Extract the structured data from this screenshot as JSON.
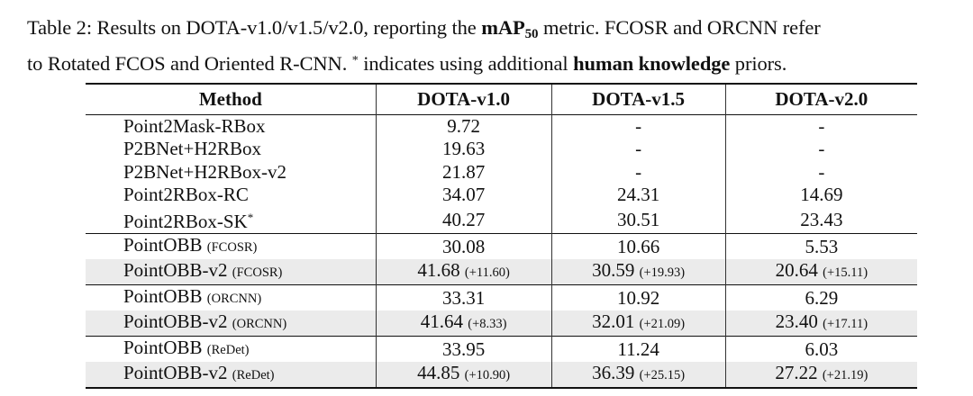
{
  "caption": {
    "label": "Table 2:",
    "text_before_bold": "Results on DOTA-v1.0/v1.5/v2.0, reporting the",
    "metric_bold": "mAP",
    "metric_sub": "50",
    "text_after_metric": "metric. FCOSR and ORCNN refer",
    "line2_before": "to Rotated FCOS and Oriented R-CNN.",
    "star": "*",
    "line2_mid": "indicates using additional",
    "line2_bold": "human knowledge",
    "line2_end": "priors."
  },
  "table": {
    "headers": [
      "Method",
      "DOTA-v1.0",
      "DOTA-v1.5",
      "DOTA-v2.0"
    ],
    "rows": [
      {
        "method": "Point2Mask-RBox",
        "detector": "",
        "sup": "",
        "v10": "9.72",
        "v10_gain": "",
        "v15": "-",
        "v15_gain": "",
        "v20": "-",
        "v20_gain": ""
      },
      {
        "method": "P2BNet+H2RBox",
        "detector": "",
        "sup": "",
        "v10": "19.63",
        "v10_gain": "",
        "v15": "-",
        "v15_gain": "",
        "v20": "-",
        "v20_gain": ""
      },
      {
        "method": "P2BNet+H2RBox-v2",
        "detector": "",
        "sup": "",
        "v10": "21.87",
        "v10_gain": "",
        "v15": "-",
        "v15_gain": "",
        "v20": "-",
        "v20_gain": ""
      },
      {
        "method": "Point2RBox-RC",
        "detector": "",
        "sup": "",
        "v10": "34.07",
        "v10_gain": "",
        "v15": "24.31",
        "v15_gain": "",
        "v20": "14.69",
        "v20_gain": ""
      },
      {
        "method": "Point2RBox-SK",
        "detector": "",
        "sup": "*",
        "v10": "40.27",
        "v10_gain": "",
        "v15": "30.51",
        "v15_gain": "",
        "v20": "23.43",
        "v20_gain": ""
      },
      {
        "method": "PointOBB",
        "detector": "(FCOSR)",
        "sup": "",
        "v10": "30.08",
        "v10_gain": "",
        "v15": "10.66",
        "v15_gain": "",
        "v20": "5.53",
        "v20_gain": ""
      },
      {
        "method": "PointOBB-v2",
        "detector": "(FCOSR)",
        "sup": "",
        "v10": "41.68",
        "v10_gain": "(+11.60)",
        "v15": "30.59",
        "v15_gain": "(+19.93)",
        "v20": "20.64",
        "v20_gain": "(+15.11)"
      },
      {
        "method": "PointOBB",
        "detector": "(ORCNN)",
        "sup": "",
        "v10": "33.31",
        "v10_gain": "",
        "v15": "10.92",
        "v15_gain": "",
        "v20": "6.29",
        "v20_gain": ""
      },
      {
        "method": "PointOBB-v2",
        "detector": "(ORCNN)",
        "sup": "",
        "v10": "41.64",
        "v10_gain": "(+8.33)",
        "v15": "32.01",
        "v15_gain": "(+21.09)",
        "v20": "23.40",
        "v20_gain": "(+17.11)"
      },
      {
        "method": "PointOBB",
        "detector": "(ReDet)",
        "sup": "",
        "v10": "33.95",
        "v10_gain": "",
        "v15": "11.24",
        "v15_gain": "",
        "v20": "6.03",
        "v20_gain": ""
      },
      {
        "method": "PointOBB-v2",
        "detector": "(ReDet)",
        "sup": "",
        "v10": "44.85",
        "v10_gain": "(+10.90)",
        "v15": "36.39",
        "v15_gain": "(+25.15)",
        "v20": "27.22",
        "v20_gain": "(+21.19)"
      }
    ]
  }
}
